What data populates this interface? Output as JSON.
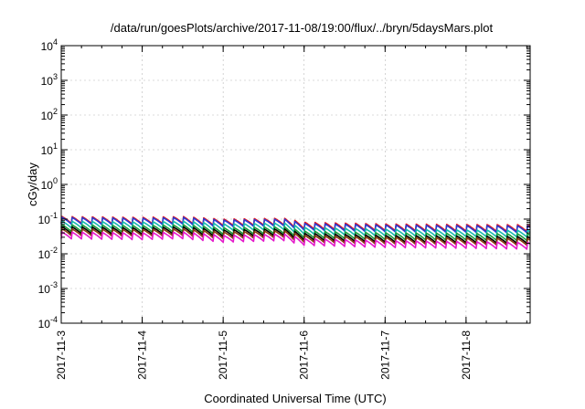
{
  "chart_data": {
    "type": "line",
    "title": "/data/run/goesPlots/archive/2017-11-08/19:00/flux/../bryn/5daysMars.plot",
    "xlabel": "Coordinated Universal Time (UTC)",
    "ylabel": "cGy/day",
    "yscale": "log",
    "ylim": [
      0.0001,
      10000
    ],
    "y_ticks": [
      {
        "base": "10",
        "exp": "-4",
        "value": 0.0001
      },
      {
        "base": "10",
        "exp": "-3",
        "value": 0.001
      },
      {
        "base": "10",
        "exp": "-2",
        "value": 0.01
      },
      {
        "base": "10",
        "exp": "-1",
        "value": 0.1
      },
      {
        "base": "10",
        "exp": "0",
        "value": 1
      },
      {
        "base": "10",
        "exp": "1",
        "value": 10
      },
      {
        "base": "10",
        "exp": "2",
        "value": 100
      },
      {
        "base": "10",
        "exp": "3",
        "value": 1000
      },
      {
        "base": "10",
        "exp": "4",
        "value": 10000
      }
    ],
    "xlim": [
      "2017-11-03",
      "2017-11-08T19:00"
    ],
    "x_ticks": [
      "2017-11-3",
      "2017-11-4",
      "2017-11-5",
      "2017-11-6",
      "2017-11-7",
      "2017-11-8"
    ],
    "grid": true,
    "legend": "none",
    "sawtooth_period_hours": 3,
    "series": [
      {
        "color": "#e8161d",
        "x": [
          "2017-11-03T00:00",
          "2017-11-04T00:00",
          "2017-11-04T12:00",
          "2017-11-05T00:00",
          "2017-11-05T18:00",
          "2017-11-06T00:00",
          "2017-11-07T00:00",
          "2017-11-08T00:00",
          "2017-11-08T19:00"
        ],
        "values": [
          0.095,
          0.09,
          0.095,
          0.08,
          0.085,
          0.065,
          0.058,
          0.056,
          0.055
        ]
      },
      {
        "color": "#2a3ad1",
        "x": [
          "2017-11-03T00:00",
          "2017-11-04T00:00",
          "2017-11-04T12:00",
          "2017-11-05T00:00",
          "2017-11-05T18:00",
          "2017-11-06T00:00",
          "2017-11-07T00:00",
          "2017-11-08T00:00",
          "2017-11-08T19:00"
        ],
        "values": [
          0.09,
          0.085,
          0.09,
          0.075,
          0.08,
          0.06,
          0.054,
          0.052,
          0.051
        ]
      },
      {
        "color": "#17b8ad",
        "x": [
          "2017-11-03T00:00",
          "2017-11-04T00:00",
          "2017-11-04T12:00",
          "2017-11-05T00:00",
          "2017-11-05T18:00",
          "2017-11-06T00:00",
          "2017-11-07T00:00",
          "2017-11-08T00:00",
          "2017-11-08T19:00"
        ],
        "values": [
          0.07,
          0.066,
          0.07,
          0.058,
          0.062,
          0.046,
          0.041,
          0.039,
          0.038
        ]
      },
      {
        "color": "#1a9c3a",
        "x": [
          "2017-11-03T00:00",
          "2017-11-04T00:00",
          "2017-11-04T12:00",
          "2017-11-05T00:00",
          "2017-11-05T18:00",
          "2017-11-06T00:00",
          "2017-11-07T00:00",
          "2017-11-08T00:00",
          "2017-11-08T19:00"
        ],
        "values": [
          0.055,
          0.052,
          0.055,
          0.045,
          0.048,
          0.036,
          0.032,
          0.031,
          0.03
        ]
      },
      {
        "color": "#000000",
        "x": [
          "2017-11-03T00:00",
          "2017-11-04T00:00",
          "2017-11-04T12:00",
          "2017-11-05T00:00",
          "2017-11-05T18:00",
          "2017-11-06T00:00",
          "2017-11-07T00:00",
          "2017-11-08T00:00",
          "2017-11-08T19:00"
        ],
        "values": [
          0.048,
          0.045,
          0.048,
          0.039,
          0.042,
          0.031,
          0.027,
          0.026,
          0.025
        ]
      },
      {
        "color": "#8b3a0f",
        "x": [
          "2017-11-03T00:00",
          "2017-11-04T00:00",
          "2017-11-04T12:00",
          "2017-11-05T00:00",
          "2017-11-05T18:00",
          "2017-11-06T00:00",
          "2017-11-07T00:00",
          "2017-11-08T00:00",
          "2017-11-08T19:00"
        ],
        "values": [
          0.042,
          0.04,
          0.042,
          0.034,
          0.037,
          0.027,
          0.024,
          0.023,
          0.022
        ]
      },
      {
        "color": "#e51acb",
        "x": [
          "2017-11-03T00:00",
          "2017-11-04T00:00",
          "2017-11-04T12:00",
          "2017-11-05T00:00",
          "2017-11-05T18:00",
          "2017-11-06T00:00",
          "2017-11-07T00:00",
          "2017-11-08T00:00",
          "2017-11-08T19:00"
        ],
        "values": [
          0.034,
          0.032,
          0.034,
          0.027,
          0.03,
          0.022,
          0.019,
          0.018,
          0.017
        ]
      }
    ]
  }
}
